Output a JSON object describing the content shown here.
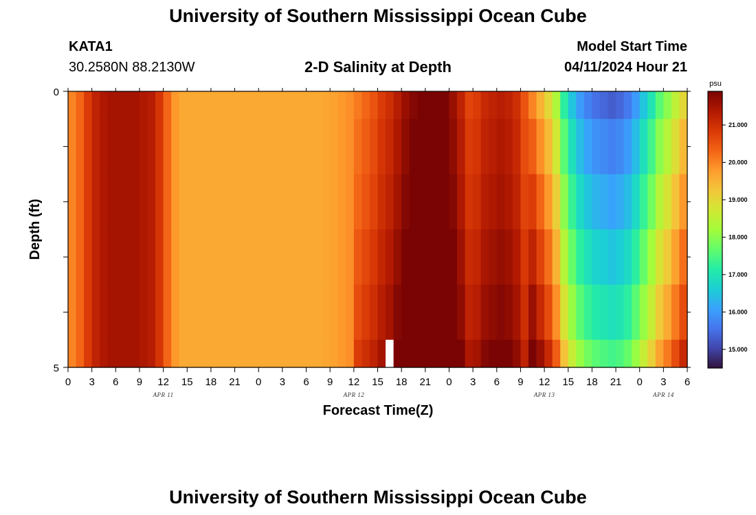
{
  "page": {
    "title_top": "University of Southern Mississippi Ocean Cube",
    "title_bottom": "University of Southern Mississippi Ocean Cube"
  },
  "header": {
    "station": "KATA1",
    "coords": "30.2580N  88.2130W",
    "plot_title": "2-D Salinity at Depth",
    "model_label": "Model Start Time",
    "model_time": "04/11/2024 Hour 21"
  },
  "chart_data": {
    "type": "heatmap",
    "title": "2-D Salinity at Depth",
    "xlabel": "Forecast Time(Z)",
    "ylabel": "Depth (ft)",
    "ylim": [
      0,
      5
    ],
    "y_ticks": [
      "0",
      "5"
    ],
    "x_tick_labels": [
      "0",
      "3",
      "6",
      "9",
      "12",
      "15",
      "18",
      "21",
      "0",
      "3",
      "6",
      "9",
      "12",
      "15",
      "18",
      "21",
      "0",
      "3",
      "6",
      "9",
      "12",
      "15",
      "18",
      "21",
      "0",
      "3",
      "6"
    ],
    "day_labels": [
      {
        "label": "APR 11",
        "hour": 12
      },
      {
        "label": "APR 12",
        "hour": 36
      },
      {
        "label": "APR 13",
        "hour": 60
      },
      {
        "label": "APR 14",
        "hour": 75
      }
    ],
    "hours_range": [
      0,
      78
    ],
    "depth_bins": [
      "0-0.5",
      "0.5-1.5",
      "1.5-2.5",
      "2.5-3.5",
      "3.5-4.5",
      "4.5-5"
    ],
    "column_hours": [
      0,
      1,
      2,
      3,
      4,
      5,
      6,
      7,
      8,
      9,
      10,
      11,
      12,
      13,
      14,
      15,
      16,
      17,
      18,
      19,
      20,
      21,
      22,
      23,
      24,
      25,
      26,
      27,
      28,
      29,
      30,
      31,
      32,
      33,
      34,
      35,
      36,
      37,
      38,
      39,
      40,
      41,
      42,
      43,
      44,
      45,
      46,
      47,
      48,
      49,
      50,
      51,
      52,
      53,
      54,
      55,
      56,
      57,
      58,
      59,
      60,
      61,
      62,
      63,
      64,
      65,
      66,
      67,
      68,
      69,
      70,
      71,
      72,
      73,
      74,
      75,
      76,
      77
    ],
    "surface_salinity": [
      20.0,
      20.3,
      20.8,
      21.2,
      21.4,
      21.5,
      21.5,
      21.5,
      21.5,
      21.4,
      21.3,
      20.9,
      20.3,
      19.8,
      19.6,
      19.6,
      19.6,
      19.6,
      19.6,
      19.6,
      19.6,
      19.6,
      19.6,
      19.6,
      19.6,
      19.6,
      19.6,
      19.6,
      19.6,
      19.6,
      19.6,
      19.6,
      19.65,
      19.7,
      19.8,
      19.9,
      20.1,
      20.3,
      20.5,
      20.8,
      21.0,
      21.3,
      21.6,
      21.8,
      22.0,
      22.1,
      22.1,
      21.9,
      21.6,
      21.2,
      20.7,
      20.8,
      21.1,
      21.2,
      21.3,
      21.2,
      21.0,
      20.5,
      20.0,
      19.5,
      19.0,
      18.3,
      17.2,
      16.5,
      16.0,
      15.7,
      15.5,
      15.4,
      15.3,
      15.4,
      15.6,
      16.0,
      16.5,
      17.0,
      17.6,
      18.0,
      18.5,
      19.0
    ],
    "depth_offsets": [
      {
        "bin": "0-0.5",
        "cols_36_57": 0,
        "cols_58_77": 0
      },
      {
        "bin": "0.5-1.5",
        "cols_36_57": 0.1,
        "cols_58_77": 0.4
      },
      {
        "bin": "1.5-2.5",
        "cols_36_57": 0.2,
        "cols_58_77": 0.8
      },
      {
        "bin": "2.5-3.5",
        "cols_36_57": 0.35,
        "cols_58_77": 1.2
      },
      {
        "bin": "3.5-4.5",
        "cols_36_57": 0.5,
        "cols_58_77": 1.6
      },
      {
        "bin": "4.5-5",
        "cols_36_57": 0.7,
        "cols_58_77": 2.1
      }
    ],
    "missing_data": {
      "hour": 40,
      "depth_bin": "4.5-5"
    },
    "colorbar": {
      "unit": "psu",
      "min": 14.5,
      "max": 21.9,
      "ticks": [
        "15.000",
        "16.000",
        "17.000",
        "18.000",
        "19.000",
        "20.000",
        "21.000"
      ],
      "tick_values": [
        15,
        16,
        17,
        18,
        19,
        20,
        21
      ],
      "colormap": [
        "#30123b",
        "#4145ab",
        "#4675ed",
        "#39a2fc",
        "#1bcfd4",
        "#24eca6",
        "#61fc6c",
        "#a4fc3b",
        "#d1e834",
        "#f3c63a",
        "#fe9b2d",
        "#f36315",
        "#d93806",
        "#b11901",
        "#7a0403"
      ]
    }
  }
}
